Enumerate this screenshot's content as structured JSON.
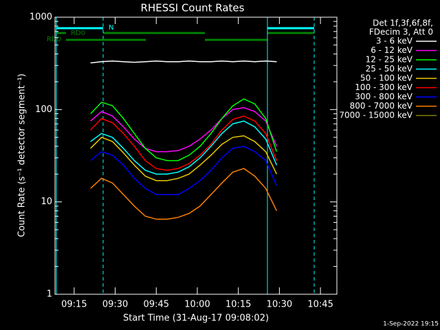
{
  "chart_data": {
    "type": "line",
    "title": "RHESSI Count Rates",
    "x_label": "Start Time (31-Aug-17 09:08:02)",
    "y_label": "Count Rate (s⁻¹ detector segment⁻¹)",
    "legend_header": [
      "Det 1f,3f,6f,8f,",
      "FDecim 3, Att 0"
    ],
    "annotations": [
      "N",
      "RD0",
      "RD0"
    ],
    "timestamp": "1-Sep-2022 19:15",
    "log_y": true,
    "xlim": [
      "09:08",
      "10:51"
    ],
    "xticks": [
      "09:15",
      "09:30",
      "09:45",
      "10:00",
      "10:15",
      "10:30",
      "10:45"
    ],
    "ylim": [
      1,
      1000
    ],
    "yticks": [
      1,
      10,
      100,
      1000
    ],
    "x": [
      "09:21",
      "09:25",
      "09:29",
      "09:33",
      "09:37",
      "09:41",
      "09:45",
      "09:49",
      "09:53",
      "09:57",
      "10:01",
      "10:05",
      "10:09",
      "10:13",
      "10:17",
      "10:21",
      "10:25",
      "10:29"
    ],
    "series": [
      {
        "name": "3 - 6 keV",
        "color": "#ffffff",
        "values": [
          320,
          330,
          335,
          330,
          325,
          330,
          335,
          330,
          330,
          335,
          330,
          330,
          335,
          330,
          335,
          330,
          335,
          330
        ]
      },
      {
        "name": "6 - 12 keV",
        "color": "#ff00ff",
        "values": [
          75,
          95,
          85,
          65,
          48,
          38,
          35,
          35,
          36,
          40,
          48,
          60,
          80,
          100,
          105,
          95,
          75,
          40
        ]
      },
      {
        "name": "12 - 25 keV",
        "color": "#00ff00",
        "values": [
          90,
          120,
          110,
          80,
          55,
          38,
          30,
          28,
          28,
          32,
          40,
          55,
          80,
          110,
          130,
          115,
          80,
          35
        ]
      },
      {
        "name": "25 - 50 keV",
        "color": "#00ffff",
        "values": [
          45,
          55,
          50,
          38,
          28,
          22,
          20,
          20,
          21,
          24,
          30,
          40,
          55,
          70,
          75,
          65,
          48,
          25
        ]
      },
      {
        "name": "50 - 100 keV",
        "color": "#e8c800",
        "values": [
          38,
          50,
          45,
          34,
          25,
          19,
          17,
          17,
          18,
          20,
          25,
          32,
          42,
          50,
          52,
          45,
          35,
          20
        ]
      },
      {
        "name": "100 - 300 keV",
        "color": "#ff0000",
        "values": [
          60,
          80,
          72,
          55,
          40,
          28,
          23,
          22,
          23,
          26,
          32,
          42,
          60,
          78,
          85,
          75,
          55,
          28
        ]
      },
      {
        "name": "300 - 800 keV",
        "color": "#0000ff",
        "values": [
          28,
          35,
          32,
          25,
          18,
          14,
          12,
          12,
          12,
          14,
          17,
          22,
          30,
          38,
          40,
          35,
          28,
          15
        ]
      },
      {
        "name": "800 - 7000 keV",
        "color": "#ff8000",
        "values": [
          14,
          18,
          16,
          12,
          9,
          7,
          6.5,
          6.5,
          6.8,
          7.5,
          9,
          12,
          16,
          21,
          23,
          19,
          14,
          8
        ]
      },
      {
        "name": "7000 - 15000 keV",
        "color": "#808000",
        "values": [
          null,
          null,
          null,
          null,
          null,
          null,
          null,
          null,
          null,
          null,
          null,
          null,
          null,
          null,
          null,
          null,
          null,
          null
        ]
      }
    ]
  }
}
